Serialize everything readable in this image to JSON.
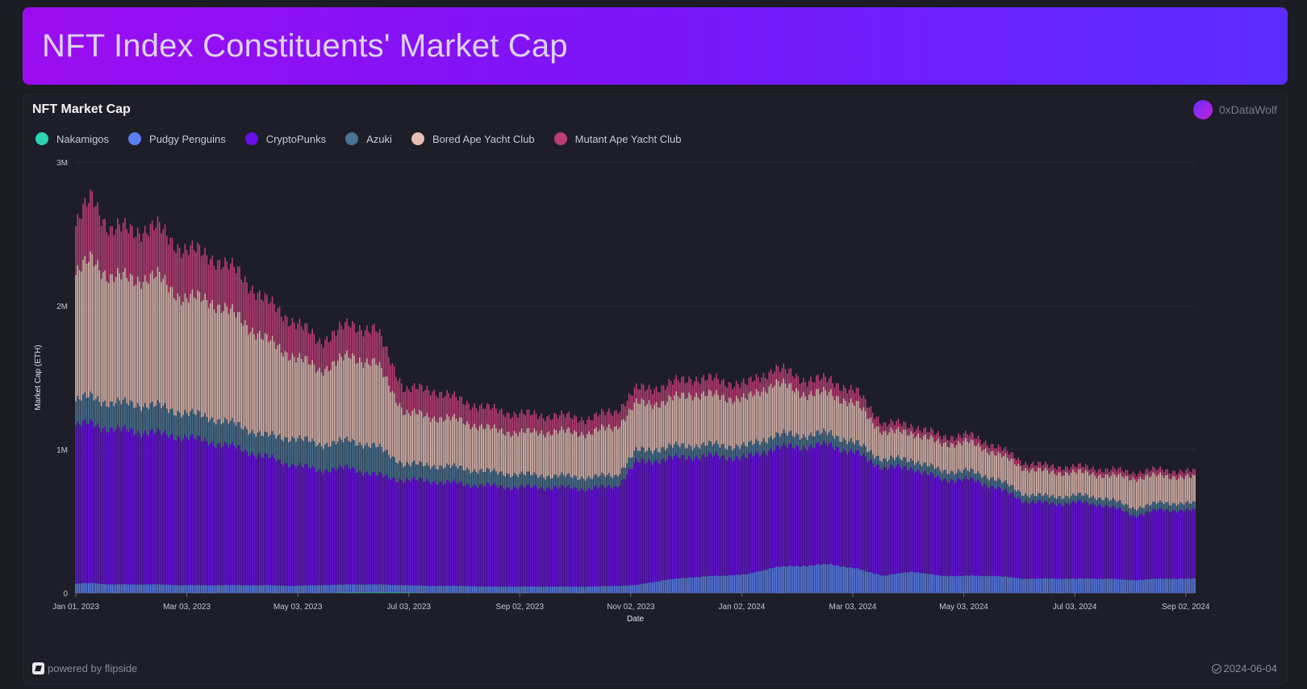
{
  "page": {
    "title": "NFT Index Constituents' Market Cap"
  },
  "card": {
    "title": "NFT Market Cap",
    "author": "0xDataWolf",
    "footer_brand": "powered by flipside",
    "footer_date": "2024-06-04"
  },
  "chart_data": {
    "type": "bar",
    "stacked": true,
    "xlabel": "Date",
    "ylabel": "Market Cap (ETH)",
    "ylim": [
      0,
      3000000
    ],
    "y_ticks": [
      {
        "value": 0,
        "label": "0"
      },
      {
        "value": 1000000,
        "label": "1M"
      },
      {
        "value": 2000000,
        "label": "2M"
      },
      {
        "value": 3000000,
        "label": "3M"
      }
    ],
    "x_range": [
      "2023-01-01",
      "2024-09-07"
    ],
    "x_ticks": [
      {
        "date": "2023-01-01",
        "label": "Jan 01, 2023"
      },
      {
        "date": "2023-03-03",
        "label": "Mar 03, 2023"
      },
      {
        "date": "2023-05-03",
        "label": "May 03, 2023"
      },
      {
        "date": "2023-07-03",
        "label": "Jul 03, 2023"
      },
      {
        "date": "2023-09-02",
        "label": "Sep 02, 2023"
      },
      {
        "date": "2023-11-02",
        "label": "Nov 02, 2023"
      },
      {
        "date": "2024-01-02",
        "label": "Jan 02, 2024"
      },
      {
        "date": "2024-03-03",
        "label": "Mar 03, 2024"
      },
      {
        "date": "2024-05-03",
        "label": "May 03, 2024"
      },
      {
        "date": "2024-07-03",
        "label": "Jul 03, 2024"
      },
      {
        "date": "2024-09-02",
        "label": "Sep 02, 2024"
      }
    ],
    "grid": true,
    "legend_position": "top-left",
    "series": [
      {
        "name": "Nakamigos",
        "color": "#2dd4b4"
      },
      {
        "name": "Pudgy Penguins",
        "color": "#5b7ff2"
      },
      {
        "name": "CryptoPunks",
        "color": "#6a0ee8"
      },
      {
        "name": "Azuki",
        "color": "#4a7494"
      },
      {
        "name": "Bored Ape Yacht Club",
        "color": "#e5bdb3"
      },
      {
        "name": "Mutant Ape Yacht Club",
        "color": "#bd3c76"
      }
    ],
    "data": [
      {
        "date": "2023-01-01",
        "values": [
          0,
          65000,
          1100000,
          170000,
          880000,
          340000
        ]
      },
      {
        "date": "2023-01-10",
        "values": [
          0,
          70000,
          1110000,
          190000,
          960000,
          430000
        ]
      },
      {
        "date": "2023-01-20",
        "values": [
          0,
          60000,
          1080000,
          180000,
          880000,
          330000
        ]
      },
      {
        "date": "2023-02-01",
        "values": [
          0,
          60000,
          1070000,
          190000,
          870000,
          340000
        ]
      },
      {
        "date": "2023-02-15",
        "values": [
          0,
          60000,
          1050000,
          190000,
          900000,
          340000
        ]
      },
      {
        "date": "2023-03-01",
        "values": [
          0,
          55000,
          1030000,
          170000,
          800000,
          340000
        ]
      },
      {
        "date": "2023-03-15",
        "values": [
          0,
          55000,
          1000000,
          170000,
          820000,
          310000
        ]
      },
      {
        "date": "2023-04-01",
        "values": [
          0,
          55000,
          950000,
          160000,
          750000,
          310000
        ]
      },
      {
        "date": "2023-04-15",
        "values": [
          0,
          55000,
          890000,
          150000,
          670000,
          270000
        ]
      },
      {
        "date": "2023-05-01",
        "values": [
          0,
          50000,
          840000,
          190000,
          570000,
          240000
        ]
      },
      {
        "date": "2023-05-15",
        "values": [
          0,
          55000,
          800000,
          180000,
          520000,
          200000
        ]
      },
      {
        "date": "2023-06-01",
        "values": [
          5000,
          55000,
          810000,
          190000,
          590000,
          220000
        ]
      },
      {
        "date": "2023-06-15",
        "values": [
          5000,
          55000,
          760000,
          200000,
          580000,
          230000
        ]
      },
      {
        "date": "2023-07-01",
        "values": [
          5000,
          50000,
          730000,
          110000,
          360000,
          160000
        ]
      },
      {
        "date": "2023-07-15",
        "values": [
          0,
          50000,
          730000,
          110000,
          340000,
          190000
        ]
      },
      {
        "date": "2023-08-01",
        "values": [
          0,
          50000,
          710000,
          110000,
          330000,
          140000
        ]
      },
      {
        "date": "2023-08-15",
        "values": [
          0,
          45000,
          700000,
          100000,
          300000,
          140000
        ]
      },
      {
        "date": "2023-09-01",
        "values": [
          0,
          45000,
          690000,
          90000,
          290000,
          130000
        ]
      },
      {
        "date": "2023-09-20",
        "values": [
          0,
          45000,
          690000,
          80000,
          310000,
          110000
        ]
      },
      {
        "date": "2023-10-10",
        "values": [
          0,
          45000,
          680000,
          80000,
          310000,
          100000
        ]
      },
      {
        "date": "2023-10-25",
        "values": [
          0,
          50000,
          690000,
          80000,
          340000,
          110000
        ]
      },
      {
        "date": "2023-11-05",
        "values": [
          0,
          55000,
          850000,
          80000,
          330000,
          100000
        ]
      },
      {
        "date": "2023-11-20",
        "values": [
          0,
          90000,
          840000,
          80000,
          320000,
          110000
        ]
      },
      {
        "date": "2023-12-05",
        "values": [
          0,
          110000,
          840000,
          80000,
          360000,
          110000
        ]
      },
      {
        "date": "2023-12-20",
        "values": [
          0,
          120000,
          830000,
          80000,
          340000,
          110000
        ]
      },
      {
        "date": "2024-01-05",
        "values": [
          0,
          130000,
          810000,
          80000,
          330000,
          100000
        ]
      },
      {
        "date": "2024-01-20",
        "values": [
          0,
          180000,
          830000,
          90000,
          370000,
          100000
        ]
      },
      {
        "date": "2024-02-05",
        "values": [
          0,
          190000,
          830000,
          80000,
          290000,
          100000
        ]
      },
      {
        "date": "2024-02-20",
        "values": [
          0,
          200000,
          830000,
          80000,
          280000,
          90000
        ]
      },
      {
        "date": "2024-03-05",
        "values": [
          0,
          170000,
          800000,
          70000,
          270000,
          90000
        ]
      },
      {
        "date": "2024-03-20",
        "values": [
          0,
          120000,
          750000,
          60000,
          190000,
          60000
        ]
      },
      {
        "date": "2024-04-05",
        "values": [
          0,
          150000,
          720000,
          60000,
          190000,
          50000
        ]
      },
      {
        "date": "2024-04-20",
        "values": [
          0,
          120000,
          670000,
          60000,
          190000,
          50000
        ]
      },
      {
        "date": "2024-05-05",
        "values": [
          0,
          120000,
          670000,
          60000,
          200000,
          50000
        ]
      },
      {
        "date": "2024-05-20",
        "values": [
          0,
          120000,
          620000,
          60000,
          180000,
          50000
        ]
      },
      {
        "date": "2024-06-05",
        "values": [
          0,
          100000,
          540000,
          50000,
          180000,
          40000
        ]
      },
      {
        "date": "2024-06-20",
        "values": [
          0,
          100000,
          520000,
          50000,
          170000,
          40000
        ]
      },
      {
        "date": "2024-07-05",
        "values": [
          0,
          100000,
          530000,
          50000,
          160000,
          40000
        ]
      },
      {
        "date": "2024-07-20",
        "values": [
          0,
          100000,
          510000,
          50000,
          160000,
          40000
        ]
      },
      {
        "date": "2024-08-05",
        "values": [
          0,
          90000,
          450000,
          50000,
          210000,
          40000
        ]
      },
      {
        "date": "2024-08-20",
        "values": [
          0,
          100000,
          480000,
          50000,
          190000,
          40000
        ]
      },
      {
        "date": "2024-09-07",
        "values": [
          0,
          100000,
          470000,
          50000,
          180000,
          40000
        ]
      }
    ]
  }
}
